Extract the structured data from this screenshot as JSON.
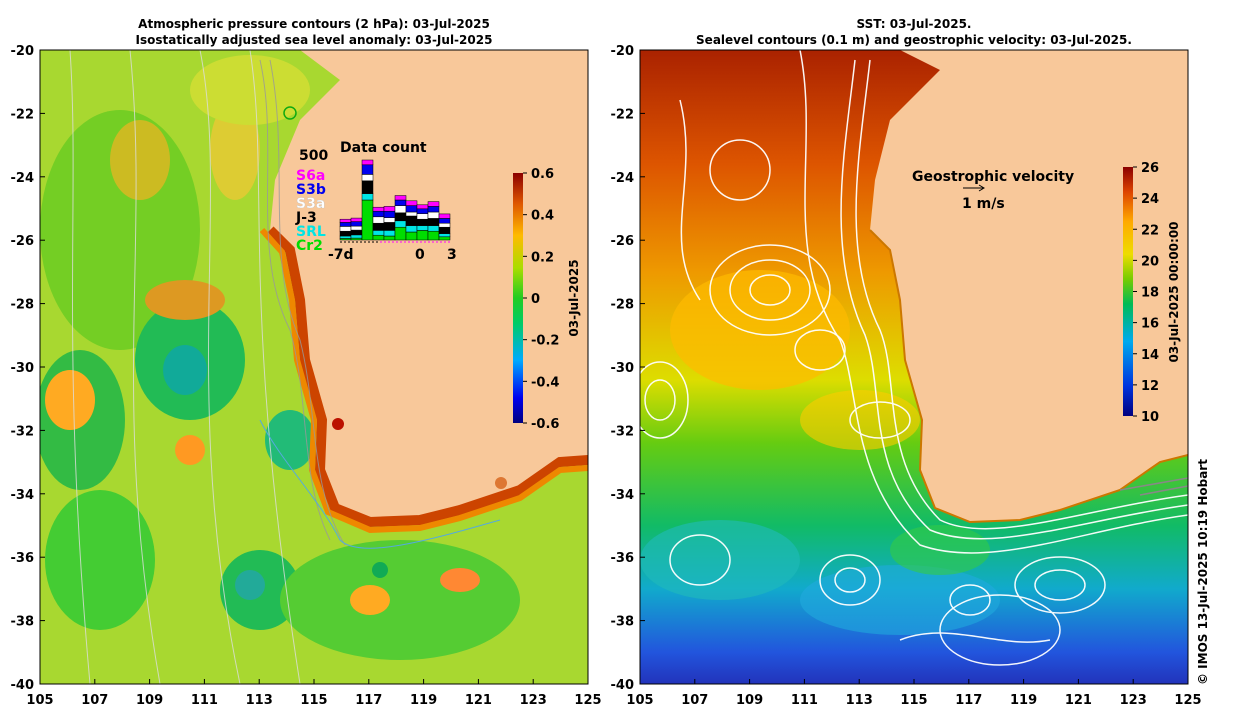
{
  "titles": {
    "left_line1": "Atmospheric pressure contours (2 hPa): 03-Jul-2025",
    "left_line2": "Isostatically adjusted sea level anomaly: 03-Jul-2025",
    "right_line1": "SST: 03-Jul-2025.",
    "right_line2": "Sealevel contours (0.1 m) and geostrophic velocity: 03-Jul-2025."
  },
  "chart_data": [
    {
      "type": "heatmap",
      "name": "Sea level anomaly map",
      "x_range": [
        105,
        125
      ],
      "y_range": [
        -40,
        -20
      ],
      "x_ticks": [
        "105",
        "107",
        "109",
        "111",
        "113",
        "115",
        "117",
        "119",
        "121",
        "123",
        "125"
      ],
      "y_ticks": [
        "-20",
        "-22",
        "-24",
        "-26",
        "-28",
        "-30",
        "-32",
        "-34",
        "-36",
        "-38",
        "-40"
      ],
      "colorbar": {
        "min": -0.6,
        "max": 0.6,
        "ticks": [
          "0.6",
          "0.4",
          "0.2",
          "0",
          "-0.2",
          "-0.4",
          "-0.6"
        ],
        "label": "03-Jul-2025"
      },
      "inset": {
        "title": "Data count",
        "ymax_label": "500",
        "x_labels": [
          "-7d",
          "0",
          "3"
        ],
        "missions": [
          {
            "name": "S6a",
            "color": "#ff00ff"
          },
          {
            "name": "S3b",
            "color": "#0000ee"
          },
          {
            "name": "S3a",
            "color": "#ffffff"
          },
          {
            "name": "J-3",
            "color": "#000000"
          },
          {
            "name": "SRL",
            "color": "#00e5e5"
          },
          {
            "name": "Cr2",
            "color": "#00dd00"
          }
        ],
        "bars": [
          [
            20,
            25,
            30,
            30,
            15,
            10
          ],
          [
            22,
            28,
            25,
            30,
            20,
            12
          ],
          [
            30,
            60,
            40,
            80,
            40,
            250
          ],
          [
            25,
            35,
            40,
            45,
            30,
            30
          ],
          [
            30,
            40,
            30,
            50,
            35,
            25
          ],
          [
            28,
            35,
            45,
            50,
            40,
            80
          ],
          [
            30,
            40,
            25,
            60,
            40,
            50
          ],
          [
            25,
            30,
            35,
            40,
            30,
            60
          ],
          [
            30,
            35,
            40,
            45,
            35,
            55
          ],
          [
            28,
            30,
            25,
            40,
            20,
            20
          ]
        ]
      }
    },
    {
      "type": "heatmap",
      "name": "SST map",
      "x_range": [
        105,
        125
      ],
      "y_range": [
        -40,
        -20
      ],
      "x_ticks": [
        "105",
        "107",
        "109",
        "111",
        "113",
        "115",
        "117",
        "119",
        "121",
        "123",
        "125"
      ],
      "y_ticks": [
        "-20",
        "-22",
        "-24",
        "-26",
        "-28",
        "-30",
        "-32",
        "-34",
        "-36",
        "-38",
        "-40"
      ],
      "colorbar": {
        "min": 10,
        "max": 26,
        "ticks": [
          "26",
          "24",
          "22",
          "20",
          "18",
          "16",
          "14",
          "12",
          "10"
        ],
        "label": "03-Jul-2025 00:00:00"
      },
      "velocity_legend": {
        "title": "Geostrophic velocity",
        "scale": "1 m/s"
      }
    }
  ],
  "copyright": "© IMOS 13-Jul-2025 10:19 Hobart"
}
